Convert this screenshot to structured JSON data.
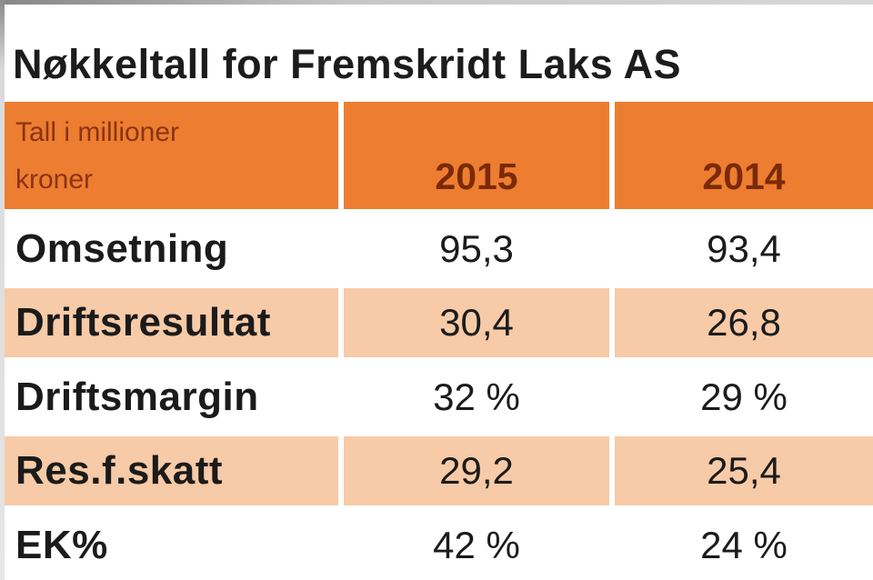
{
  "title": "Nøkkeltall for Fremskridt Laks AS",
  "table": {
    "unit_lines": [
      "Tall i millioner",
      "kroner"
    ],
    "columns": [
      "2015",
      "2014"
    ],
    "rows": [
      {
        "label": "Omsetning",
        "values": [
          "95,3",
          "93,4"
        ]
      },
      {
        "label": "Driftsresultat",
        "values": [
          "30,4",
          "26,8"
        ]
      },
      {
        "label": "Driftsmargin",
        "values": [
          "32 %",
          "29 %"
        ]
      },
      {
        "label": "Res.f.skatt",
        "values": [
          "29,2",
          "25,4"
        ]
      },
      {
        "label": "EK%",
        "values": [
          "42 %",
          "24 %"
        ]
      }
    ]
  },
  "colors": {
    "header_bg": "#ED7D31",
    "header_year_text": "#7B2A07",
    "header_unit_text": "#8A3412",
    "alt_row_bg": "#F7CBA7",
    "title_text": "#1C1C1C",
    "body_text": "#1B1B1B"
  },
  "chart_data": {
    "type": "table",
    "title": "Nøkkeltall for Fremskridt Laks AS",
    "unit": "Tall i millioner kroner",
    "columns": [
      "2015",
      "2014"
    ],
    "row_labels": [
      "Omsetning",
      "Driftsresultat",
      "Driftsmargin",
      "Res.f.skatt",
      "EK%"
    ],
    "series": [
      {
        "name": "2015",
        "values": [
          95.3,
          30.4,
          "32 %",
          29.2,
          "42 %"
        ]
      },
      {
        "name": "2014",
        "values": [
          93.4,
          26.8,
          "29 %",
          25.4,
          "24 %"
        ]
      }
    ]
  }
}
